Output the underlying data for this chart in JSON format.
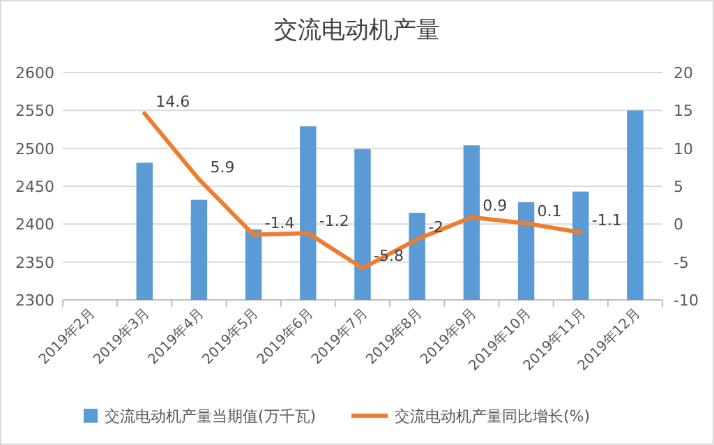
{
  "chart_data": {
    "type": "bar",
    "title": "交流电动机产量",
    "categories": [
      "2019年2月",
      "2019年3月",
      "2019年4月",
      "2019年5月",
      "2019年6月",
      "2019年7月",
      "2019年8月",
      "2019年9月",
      "2019年10月",
      "2019年11月",
      "2019年12月"
    ],
    "series": [
      {
        "name": "交流电动机产量当期值(万千瓦)",
        "color": "#5b9bd5",
        "values": [
          null,
          2481,
          2432,
          2393,
          2529,
          2499,
          2415,
          2504,
          2429,
          2443,
          2550
        ]
      },
      {
        "name": "交流电动机产量同比增长(%)",
        "type": "line",
        "axis": "y2",
        "color": "#ed7d31",
        "values": [
          null,
          14.6,
          5.9,
          -1.4,
          -1.2,
          -5.8,
          -2,
          0.9,
          0.1,
          -1.1,
          null
        ],
        "value_labels": [
          null,
          "14.6",
          "5.9",
          "-1.4",
          "-1.2",
          "-5.8",
          "-2",
          "0.9",
          "0.1",
          "-1.1",
          null
        ]
      }
    ],
    "ylim": [
      2300,
      2600
    ],
    "yticks": [
      2300,
      2350,
      2400,
      2450,
      2500,
      2550,
      2600
    ],
    "y2lim": [
      -10,
      20
    ],
    "y2ticks": [
      -10,
      -5,
      0,
      5,
      10,
      15,
      20
    ],
    "grid": "y",
    "legend": "bottom"
  }
}
